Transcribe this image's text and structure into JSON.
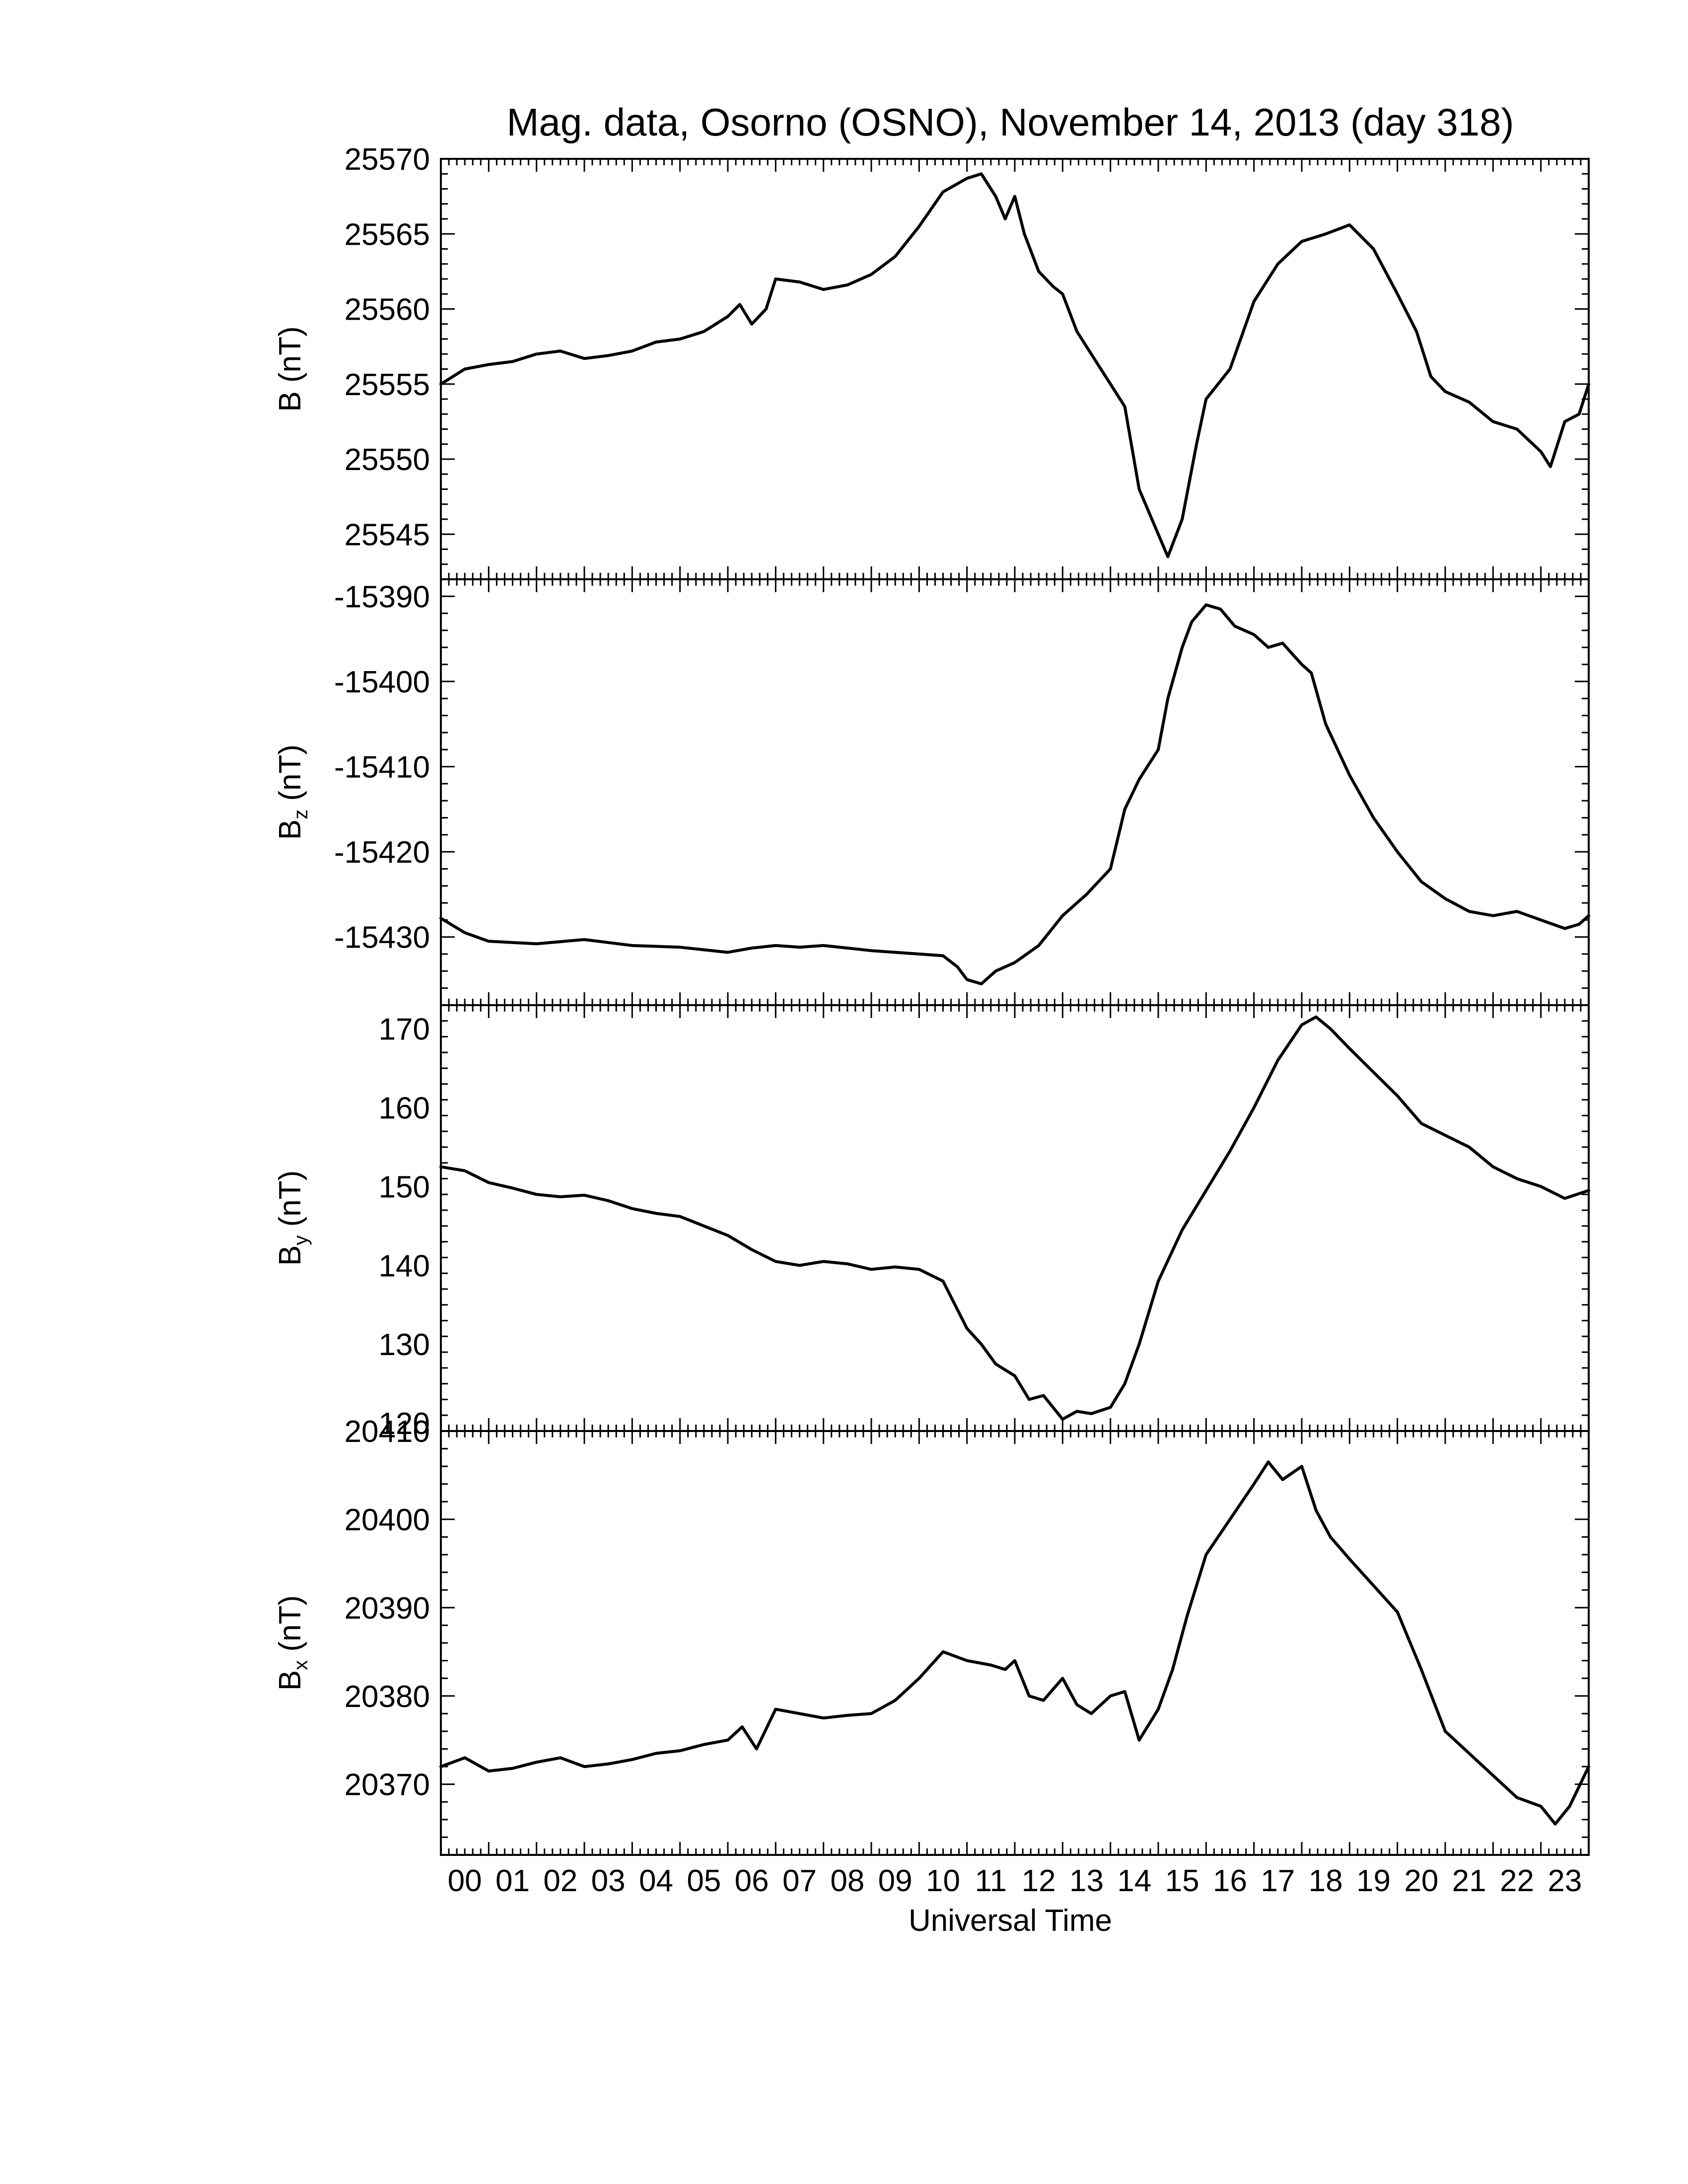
{
  "chart_data": {
    "type": "line",
    "title": "Mag. data, Osorno (OSNO), November 14, 2013 (day 318)",
    "xlabel": "Universal Time",
    "x_unit": "hour UT",
    "x_ticks": [
      "00",
      "01",
      "02",
      "03",
      "04",
      "05",
      "06",
      "07",
      "08",
      "09",
      "10",
      "11",
      "12",
      "13",
      "14",
      "15",
      "16",
      "17",
      "18",
      "19",
      "20",
      "21",
      "22",
      "23"
    ],
    "xlim": [
      0,
      24
    ],
    "line_color": "#000000",
    "panels": [
      {
        "key": "B",
        "ylabel_main": "B",
        "ylabel_sub": "",
        "ylabel_unit": "(nT)",
        "ylim": [
          25542,
          25570
        ],
        "yticks": [
          25545,
          25550,
          25555,
          25560,
          25565,
          25570
        ],
        "x": [
          0,
          0.5,
          1.0,
          1.5,
          2.0,
          2.5,
          3.0,
          3.5,
          4.0,
          4.5,
          5.0,
          5.5,
          6.0,
          6.25,
          6.5,
          6.8,
          7.0,
          7.5,
          8.0,
          8.5,
          9.0,
          9.5,
          10.0,
          10.5,
          11.0,
          11.3,
          11.6,
          11.8,
          12.0,
          12.2,
          12.5,
          12.8,
          13.0,
          13.3,
          13.6,
          14.0,
          14.3,
          14.6,
          15.0,
          15.2,
          15.5,
          15.8,
          16.0,
          16.5,
          17.0,
          17.5,
          18.0,
          18.5,
          19.0,
          19.5,
          20.0,
          20.4,
          20.7,
          21.0,
          21.5,
          22.0,
          22.5,
          23.0,
          23.2,
          23.5,
          23.8,
          24.0
        ],
        "y": [
          25555.0,
          25556.0,
          25556.3,
          25556.5,
          25557.0,
          25557.2,
          25556.7,
          25556.9,
          25557.2,
          25557.8,
          25558.0,
          25558.5,
          25559.5,
          25560.3,
          25559.0,
          25560.0,
          25562.0,
          25561.8,
          25561.3,
          25561.6,
          25562.3,
          25563.5,
          25565.5,
          25567.8,
          25568.7,
          25569.0,
          25567.5,
          25566.0,
          25567.5,
          25565.0,
          25562.5,
          25561.5,
          25561.0,
          25558.5,
          25557.0,
          25555.0,
          25553.5,
          25548.0,
          25545.0,
          25543.5,
          25546.0,
          25551.0,
          25554.0,
          25556.0,
          25560.5,
          25563.0,
          25564.5,
          25565.0,
          25565.6,
          25564.0,
          25561.0,
          25558.5,
          25555.5,
          25554.5,
          25553.8,
          25552.5,
          25552.0,
          25550.5,
          25549.5,
          25552.5,
          25553.0,
          25555.0
        ]
      },
      {
        "key": "Bz",
        "ylabel_main": "B",
        "ylabel_sub": "z",
        "ylabel_unit": "(nT)",
        "ylim": [
          -15438,
          -15388
        ],
        "yticks": [
          -15430,
          -15420,
          -15410,
          -15400,
          -15390
        ],
        "x": [
          0,
          0.5,
          1.0,
          2.0,
          3.0,
          4.0,
          5.0,
          5.5,
          6.0,
          6.5,
          7.0,
          7.5,
          8.0,
          8.5,
          9.0,
          9.5,
          10.0,
          10.5,
          10.8,
          11.0,
          11.3,
          11.6,
          12.0,
          12.5,
          13.0,
          13.5,
          14.0,
          14.3,
          14.6,
          15.0,
          15.2,
          15.5,
          15.7,
          16.0,
          16.3,
          16.6,
          17.0,
          17.3,
          17.6,
          18.0,
          18.2,
          18.5,
          19.0,
          19.5,
          20.0,
          20.5,
          21.0,
          21.5,
          22.0,
          22.5,
          23.0,
          23.5,
          23.8,
          24.0
        ],
        "y": [
          -15427.8,
          -15429.5,
          -15430.5,
          -15430.8,
          -15430.3,
          -15431.0,
          -15431.2,
          -15431.5,
          -15431.8,
          -15431.3,
          -15431.0,
          -15431.2,
          -15431.0,
          -15431.3,
          -15431.6,
          -15431.8,
          -15432.0,
          -15432.2,
          -15433.5,
          -15435.0,
          -15435.5,
          -15434.0,
          -15433.0,
          -15431.0,
          -15427.5,
          -15425.0,
          -15422.0,
          -15415.0,
          -15411.5,
          -15408.0,
          -15402.0,
          -15396.0,
          -15393.0,
          -15391.0,
          -15391.5,
          -15393.5,
          -15394.5,
          -15396.0,
          -15395.5,
          -15398.0,
          -15399.0,
          -15405.0,
          -15411.0,
          -15416.0,
          -15420.0,
          -15423.5,
          -15425.5,
          -15427.0,
          -15427.5,
          -15427.0,
          -15428.0,
          -15429.0,
          -15428.5,
          -15427.5
        ]
      },
      {
        "key": "By",
        "ylabel_main": "B",
        "ylabel_sub": "y",
        "ylabel_unit": "(nT)",
        "ylim": [
          119,
          173
        ],
        "yticks": [
          120,
          130,
          140,
          150,
          160,
          170
        ],
        "x": [
          0,
          0.5,
          1.0,
          1.5,
          2.0,
          2.5,
          3.0,
          3.5,
          4.0,
          4.5,
          5.0,
          5.5,
          6.0,
          6.5,
          7.0,
          7.5,
          8.0,
          8.5,
          9.0,
          9.5,
          10.0,
          10.5,
          11.0,
          11.3,
          11.6,
          12.0,
          12.3,
          12.6,
          13.0,
          13.3,
          13.6,
          14.0,
          14.3,
          14.6,
          15.0,
          15.5,
          16.0,
          16.5,
          17.0,
          17.5,
          18.0,
          18.3,
          18.6,
          19.0,
          19.5,
          20.0,
          20.5,
          21.0,
          21.5,
          22.0,
          22.5,
          23.0,
          23.5,
          24.0
        ],
        "y": [
          152.5,
          152.0,
          150.5,
          149.8,
          149.0,
          148.7,
          148.9,
          148.2,
          147.2,
          146.6,
          146.2,
          145.0,
          143.8,
          142.0,
          140.5,
          140.0,
          140.5,
          140.2,
          139.5,
          139.8,
          139.5,
          138.0,
          132.0,
          130.0,
          127.5,
          126.0,
          123.0,
          123.5,
          120.5,
          121.5,
          121.2,
          122.0,
          125.0,
          130.0,
          138.0,
          144.5,
          149.5,
          154.5,
          160.0,
          166.0,
          170.5,
          171.5,
          170.0,
          167.5,
          164.5,
          161.5,
          158.0,
          156.5,
          155.0,
          152.5,
          151.0,
          150.0,
          148.5,
          149.5
        ]
      },
      {
        "key": "Bx",
        "ylabel_main": "B",
        "ylabel_sub": "x",
        "ylabel_unit": "(nT)",
        "ylim": [
          20362,
          20410
        ],
        "yticks": [
          20370,
          20380,
          20390,
          20400,
          20410
        ],
        "x": [
          0,
          0.5,
          1.0,
          1.5,
          2.0,
          2.5,
          3.0,
          3.5,
          4.0,
          4.5,
          5.0,
          5.5,
          6.0,
          6.3,
          6.6,
          7.0,
          7.5,
          8.0,
          8.5,
          9.0,
          9.5,
          10.0,
          10.5,
          11.0,
          11.5,
          11.8,
          12.0,
          12.3,
          12.6,
          13.0,
          13.3,
          13.6,
          14.0,
          14.3,
          14.6,
          15.0,
          15.3,
          15.6,
          16.0,
          16.5,
          17.0,
          17.3,
          17.6,
          18.0,
          18.3,
          18.6,
          19.0,
          19.5,
          20.0,
          20.5,
          21.0,
          21.5,
          22.0,
          22.5,
          23.0,
          23.3,
          23.6,
          24.0
        ],
        "y": [
          20372.0,
          20373.0,
          20371.5,
          20371.8,
          20372.5,
          20373.0,
          20372.0,
          20372.3,
          20372.8,
          20373.5,
          20373.8,
          20374.5,
          20375.0,
          20376.5,
          20374.0,
          20378.5,
          20378.0,
          20377.5,
          20377.8,
          20378.0,
          20379.5,
          20382.0,
          20385.0,
          20384.0,
          20383.5,
          20383.0,
          20384.0,
          20380.0,
          20379.5,
          20382.0,
          20379.0,
          20378.0,
          20380.0,
          20380.5,
          20375.0,
          20378.5,
          20383.0,
          20389.0,
          20396.0,
          20400.0,
          20404.0,
          20406.5,
          20404.5,
          20406.0,
          20401.0,
          20398.0,
          20395.5,
          20392.5,
          20389.5,
          20383.0,
          20376.0,
          20373.5,
          20371.0,
          20368.5,
          20367.5,
          20365.5,
          20367.5,
          20372.0
        ]
      }
    ]
  }
}
